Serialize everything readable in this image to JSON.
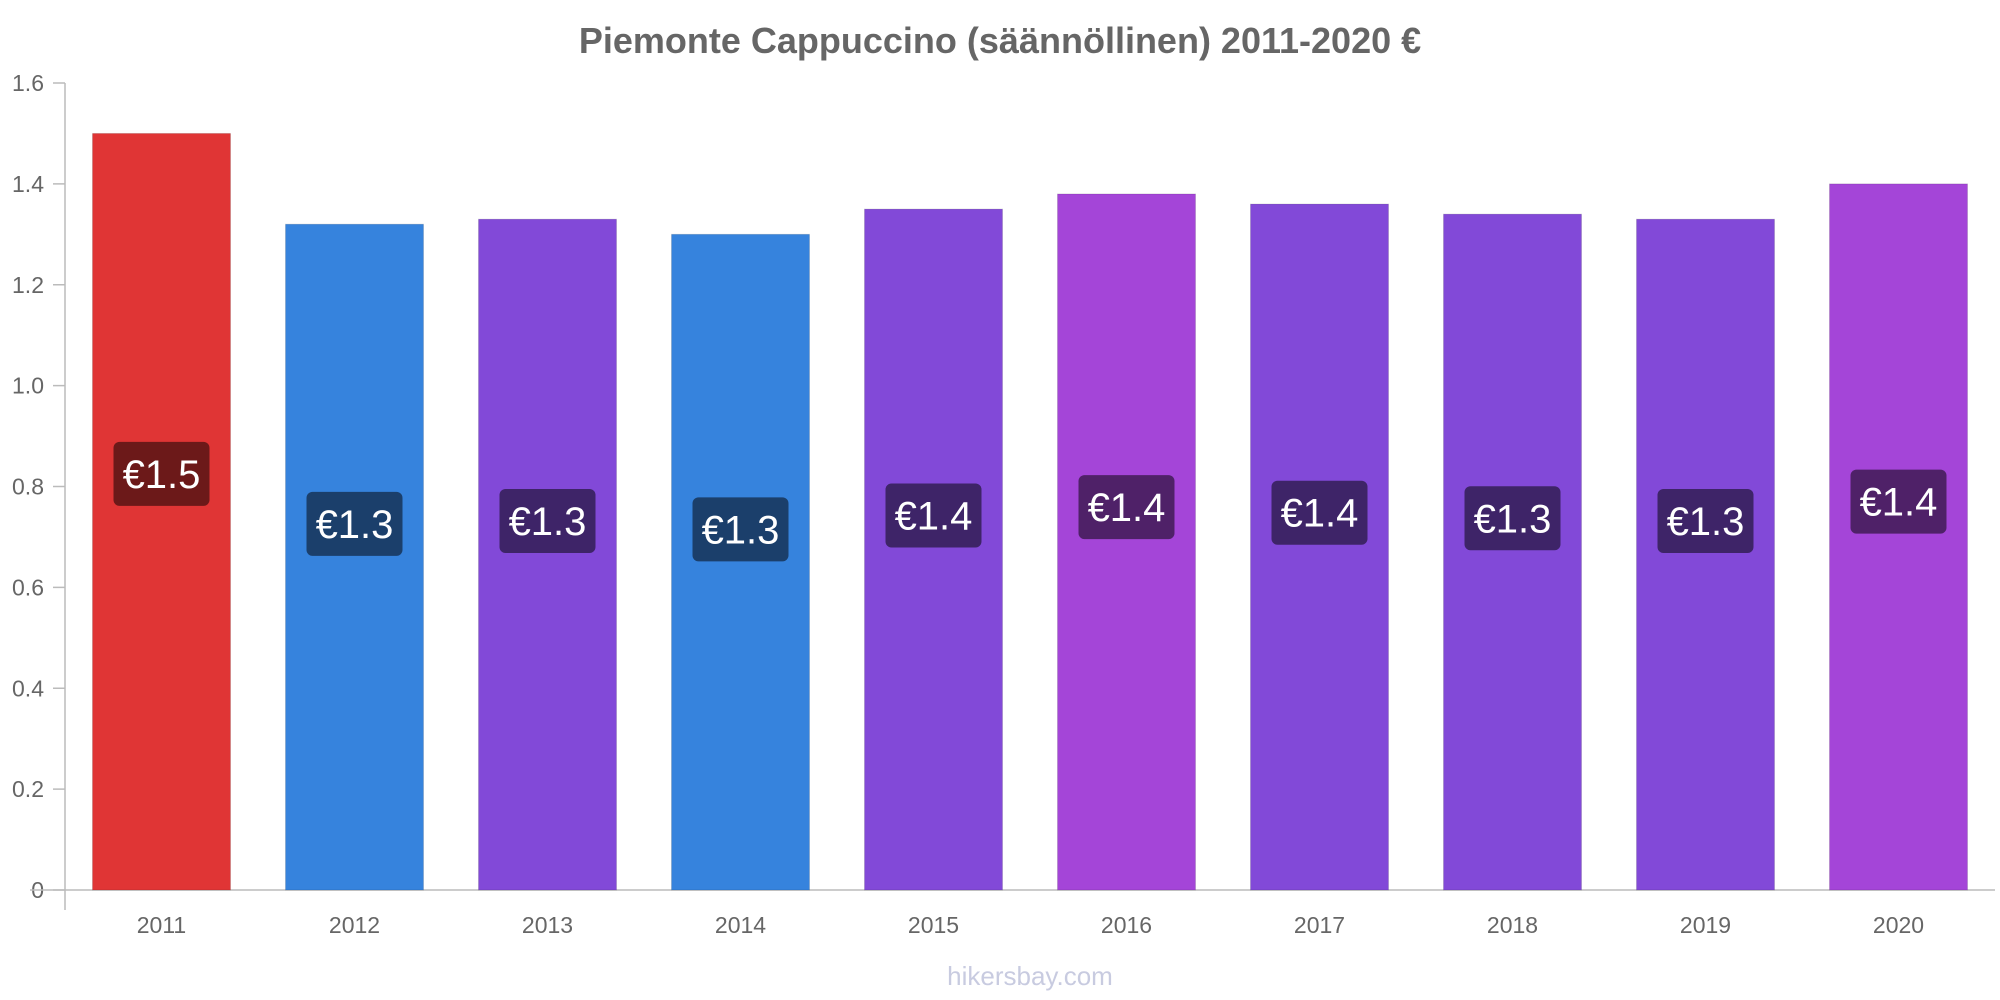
{
  "chart_data": {
    "type": "bar",
    "title": "Piemonte Cappuccino (säännöllinen) 2011-2020 €",
    "xlabel": "",
    "ylabel": "",
    "categories": [
      "2011",
      "2012",
      "2013",
      "2014",
      "2015",
      "2016",
      "2017",
      "2018",
      "2019",
      "2020"
    ],
    "values": [
      1.5,
      1.32,
      1.33,
      1.3,
      1.35,
      1.38,
      1.36,
      1.34,
      1.33,
      1.4
    ],
    "value_labels": [
      "€1.5",
      "€1.3",
      "€1.3",
      "€1.3",
      "€1.4",
      "€1.4",
      "€1.4",
      "€1.3",
      "€1.3",
      "€1.4"
    ],
    "bar_colors": [
      "#e03535",
      "#3683dd",
      "#8249d8",
      "#3683dd",
      "#8249d8",
      "#a445d8",
      "#8249d8",
      "#8249d8",
      "#8249d8",
      "#a445d8"
    ],
    "label_bg_colors": [
      "#6c1919",
      "#1b3f6b",
      "#3e2468",
      "#1b3f6b",
      "#3e2468",
      "#4f2168",
      "#3e2468",
      "#3e2468",
      "#3e2468",
      "#4f2168"
    ],
    "ylim": [
      0,
      1.6
    ],
    "yticks": [
      0,
      0.2,
      0.4,
      0.6,
      0.8,
      1.0,
      1.2,
      1.4,
      1.6
    ],
    "ytick_labels": [
      "0",
      "0.2",
      "0.4",
      "0.6",
      "0.8",
      "1.0",
      "1.2",
      "1.4",
      "1.6"
    ],
    "grid": false,
    "legend": "none"
  },
  "watermark": "hikersbay.com"
}
